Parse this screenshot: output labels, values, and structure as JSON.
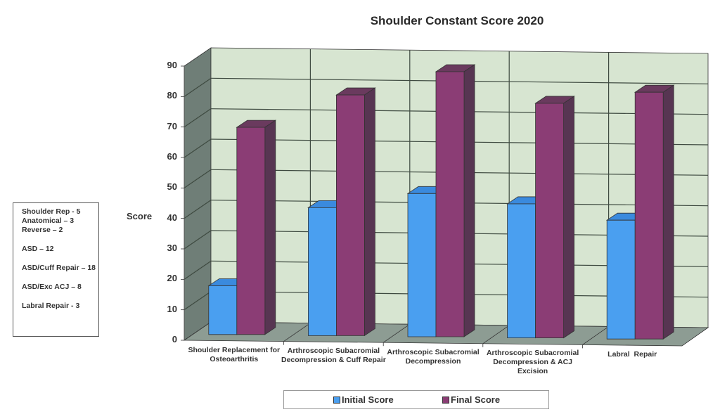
{
  "chart_data": {
    "type": "bar",
    "title": "Shoulder Constant Score 2020",
    "xlabel": "",
    "ylabel": "Score",
    "ylim": [
      0,
      90
    ],
    "yticks": [
      0,
      10,
      20,
      30,
      40,
      50,
      60,
      70,
      80,
      90
    ],
    "grid": true,
    "three_d": true,
    "legend_position": "bottom",
    "categories": [
      "Shoulder Replacement for Osteoarthritis",
      "Arthroscopic Subacromial Decompression & Cuff Repair",
      "Arthroscopic Subacromial Decompression",
      "Arthroscopic Subacromial Decompression & ACJ Excision",
      "Labral Repair"
    ],
    "series": [
      {
        "name": "Initial Score",
        "color": "#4a9ff0",
        "values": [
          16,
          42,
          47,
          44,
          39
        ]
      },
      {
        "name": "Final Score",
        "color": "#8b3d75",
        "values": [
          68,
          79,
          87,
          77,
          81
        ]
      }
    ]
  },
  "chart": {
    "title": "Shoulder Constant Score 2020",
    "ylabel": "Score",
    "ticks": [
      "0",
      "10",
      "20",
      "30",
      "40",
      "50",
      "60",
      "70",
      "80",
      "90"
    ],
    "categories": [
      [
        "Shoulder Replacement for",
        "Osteoarthritis"
      ],
      [
        "Arthroscopic Subacromial",
        "Decompression & Cuff Repair"
      ],
      [
        "Arthroscopic Subacromial",
        "Decompression"
      ],
      [
        "Arthroscopic Subacromial",
        "Decompression & ACJ",
        "Excision"
      ],
      [
        "Labral  Repair"
      ]
    ],
    "legend": {
      "initial": "Initial Score",
      "final": "Final Score"
    }
  },
  "notes": {
    "lines": [
      "Shoulder Rep - 5",
      "Anatomical – 3",
      "Reverse – 2",
      "ASD – 12",
      "ASD/Cuff Repair – 18",
      "ASD/Exc ACJ – 8",
      "Labral Repair - 3"
    ]
  },
  "colors": {
    "back_wall": "#d7e5d1",
    "side_wall": "#6f7e77",
    "floor": "#8d9c93",
    "grid": "#3e4a40",
    "initial_front": "#4a9ff0",
    "initial_top": "#3a8ade",
    "initial_side": "#2f6fb8",
    "final_front": "#8b3d75",
    "final_top": "#6a3a5e",
    "final_side": "#573552"
  }
}
